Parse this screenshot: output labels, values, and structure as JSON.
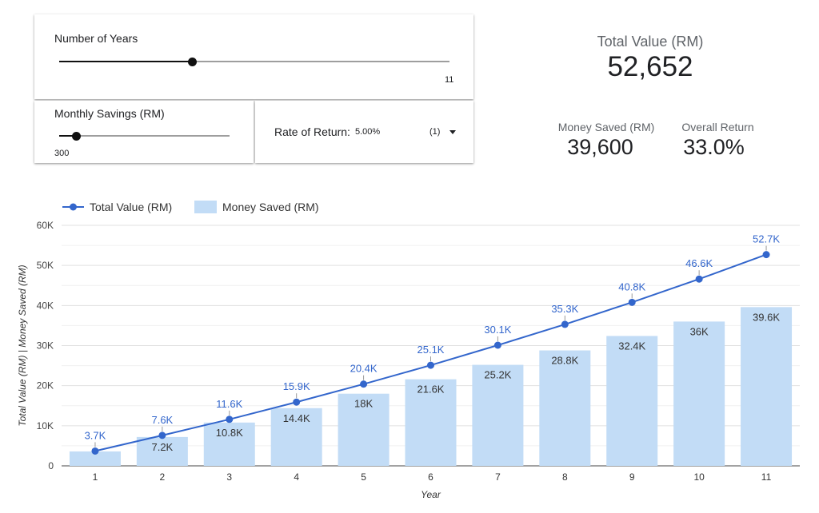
{
  "controls": {
    "years": {
      "label": "Number of Years",
      "value": "11",
      "level": 0.34
    },
    "savings": {
      "label": "Monthly Savings (RM)",
      "value": "300",
      "level": 0.1
    },
    "rate": {
      "label": "Rate of Return:",
      "value": "5.00%",
      "count": "(1)"
    }
  },
  "kpis": {
    "total_value": {
      "title": "Total Value (RM)",
      "value": "52,652"
    },
    "money_saved": {
      "title": "Money Saved (RM)",
      "value": "39,600"
    },
    "overall_return": {
      "title": "Overall Return",
      "value": "33.0%"
    }
  },
  "colors": {
    "line": "#3366cc",
    "bar": "#c2dcf6",
    "grid": "#e0e0e0"
  },
  "chart_data": {
    "type": "bar",
    "categories": [
      "1",
      "2",
      "3",
      "4",
      "5",
      "6",
      "7",
      "8",
      "9",
      "10",
      "11"
    ],
    "series": [
      {
        "name": "Total Value (RM)",
        "type": "line",
        "values": [
          3700,
          7600,
          11600,
          15900,
          20400,
          25100,
          30100,
          35300,
          40800,
          46600,
          52700
        ],
        "labels": [
          "3.7K",
          "7.6K",
          "11.6K",
          "15.9K",
          "20.4K",
          "25.1K",
          "30.1K",
          "35.3K",
          "40.8K",
          "46.6K",
          "52.7K"
        ]
      },
      {
        "name": "Money Saved (RM)",
        "type": "bar",
        "values": [
          3600,
          7200,
          10800,
          14400,
          18000,
          21600,
          25200,
          28800,
          32400,
          36000,
          39600
        ],
        "labels": [
          "",
          "7.2K",
          "10.8K",
          "14.4K",
          "18K",
          "21.6K",
          "25.2K",
          "28.8K",
          "32.4K",
          "36K",
          "39.6K"
        ]
      }
    ],
    "xlabel": "Year",
    "ylabel": "Total Value (RM) | Money Saved (RM)",
    "ylim": [
      0,
      60000
    ],
    "yticks": [
      0,
      10000,
      20000,
      30000,
      40000,
      50000,
      60000
    ],
    "ytick_labels": [
      "0",
      "10K",
      "20K",
      "30K",
      "40K",
      "50K",
      "60K"
    ],
    "grid": true,
    "legend_position": "top-left"
  }
}
